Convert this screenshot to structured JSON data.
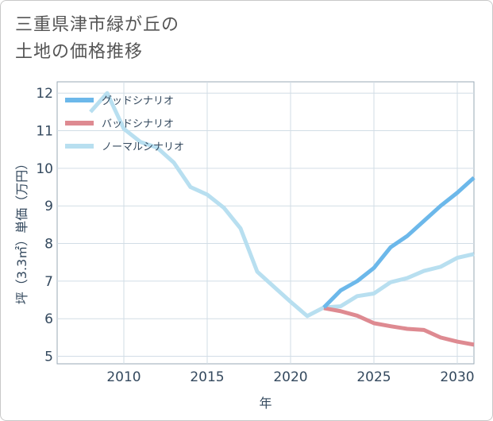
{
  "title_line1": "三重県津市緑が丘の",
  "title_line2": "土地の価格推移",
  "chart_data": {
    "type": "line",
    "title": "三重県津市緑が丘の土地の価格推移",
    "xlabel": "年",
    "ylabel": "坪（3.3㎡）単価（万円）",
    "xlim": [
      2006,
      2031
    ],
    "ylim": [
      4.8,
      12.3
    ],
    "xticks": [
      2010,
      2015,
      2020,
      2025,
      2030
    ],
    "yticks": [
      5,
      6,
      7,
      8,
      9,
      10,
      11,
      12
    ],
    "grid": true,
    "legend_position": "top-left",
    "series": [
      {
        "name": "グッドシナリオ",
        "color": "#6cb8ea",
        "x": [
          2022,
          2023,
          2024,
          2025,
          2026,
          2027,
          2028,
          2029,
          2030,
          2031
        ],
        "y": [
          6.3,
          6.75,
          7.0,
          7.35,
          7.9,
          8.2,
          8.6,
          9.0,
          9.35,
          9.75
        ]
      },
      {
        "name": "バッドシナリオ",
        "color": "#de8a91",
        "x": [
          2022,
          2023,
          2024,
          2025,
          2026,
          2027,
          2028,
          2029,
          2030,
          2031
        ],
        "y": [
          6.28,
          6.2,
          6.08,
          5.88,
          5.8,
          5.73,
          5.7,
          5.5,
          5.39,
          5.31
        ]
      },
      {
        "name": "ノーマルシナリオ",
        "color": "#b8dff0",
        "x": [
          2008,
          2009,
          2010,
          2011,
          2012,
          2013,
          2014,
          2015,
          2016,
          2017,
          2018,
          2019,
          2020,
          2021,
          2022,
          2023,
          2024,
          2025,
          2026,
          2027,
          2028,
          2029,
          2030,
          2031
        ],
        "y": [
          11.5,
          12.0,
          11.05,
          10.7,
          10.55,
          10.15,
          9.5,
          9.3,
          8.95,
          8.4,
          7.25,
          6.85,
          6.45,
          6.07,
          6.3,
          6.33,
          6.6,
          6.67,
          6.97,
          7.08,
          7.27,
          7.38,
          7.62,
          7.72
        ]
      }
    ]
  }
}
